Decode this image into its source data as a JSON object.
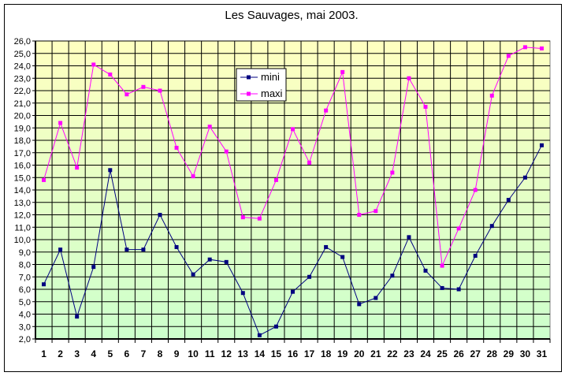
{
  "chart_data": {
    "type": "line",
    "title": "Les Sauvages, mai 2003.",
    "xlabel": "",
    "ylabel": "",
    "categories": [
      "1",
      "2",
      "3",
      "4",
      "5",
      "6",
      "7",
      "8",
      "9",
      "10",
      "11",
      "12",
      "13",
      "14",
      "15",
      "16",
      "17",
      "18",
      "19",
      "20",
      "21",
      "22",
      "23",
      "24",
      "25",
      "26",
      "27",
      "28",
      "29",
      "30",
      "31"
    ],
    "ylim": [
      2,
      26
    ],
    "ystep": 1,
    "ytick_labels": [
      "2,0",
      "3,0",
      "4,0",
      "5,0",
      "6,0",
      "7,0",
      "8,0",
      "9,0",
      "10,0",
      "11,0",
      "12,0",
      "13,0",
      "14,0",
      "15,0",
      "16,0",
      "17,0",
      "18,0",
      "19,0",
      "20,0",
      "21,0",
      "22,0",
      "23,0",
      "24,0",
      "25,0",
      "26,0"
    ],
    "grid": true,
    "legend_position": "top-center",
    "series": [
      {
        "name": "mini",
        "color": "#000080",
        "values": [
          6.4,
          9.2,
          3.8,
          7.8,
          15.6,
          9.2,
          9.2,
          12.0,
          9.4,
          7.2,
          8.4,
          8.2,
          5.7,
          2.3,
          3.0,
          5.8,
          7.0,
          9.4,
          8.6,
          4.8,
          5.3,
          7.1,
          10.2,
          7.5,
          6.1,
          6.0,
          8.7,
          11.1,
          13.2,
          15.0,
          17.6
        ]
      },
      {
        "name": "maxi",
        "color": "#ff00ff",
        "values": [
          14.8,
          19.4,
          15.8,
          24.1,
          23.3,
          21.7,
          22.3,
          22.0,
          17.4,
          15.1,
          19.1,
          17.1,
          11.8,
          11.7,
          14.8,
          18.9,
          16.2,
          20.4,
          23.5,
          12.0,
          12.3,
          15.4,
          23.0,
          20.7,
          7.9,
          10.9,
          14.0,
          21.6,
          24.8,
          25.5,
          25.4
        ]
      }
    ],
    "background_top": "#ffffc0",
    "background_bottom": "#ccffcc"
  }
}
